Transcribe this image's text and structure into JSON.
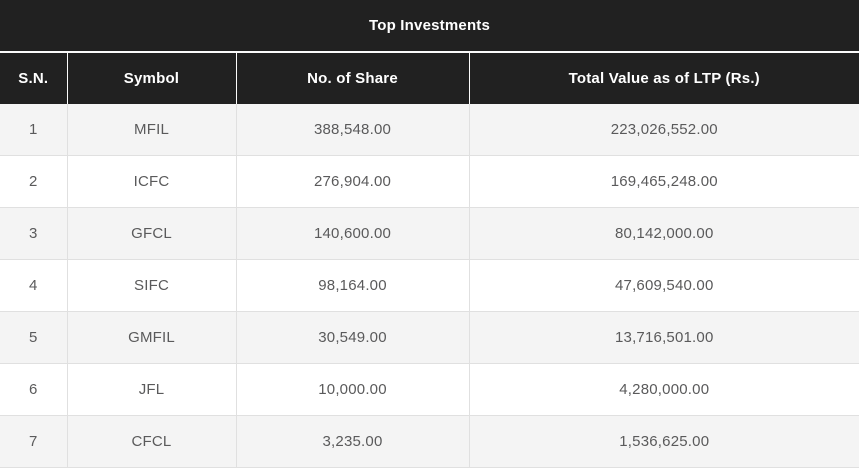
{
  "table": {
    "title": "Top Investments",
    "columns": [
      {
        "key": "sn",
        "label": "S.N."
      },
      {
        "key": "symbol",
        "label": "Symbol"
      },
      {
        "key": "shares",
        "label": "No. of Share"
      },
      {
        "key": "total",
        "label": "Total Value as of LTP (Rs.)"
      }
    ],
    "rows": [
      {
        "sn": "1",
        "symbol": "MFIL",
        "shares": "388,548.00",
        "total": "223,026,552.00"
      },
      {
        "sn": "2",
        "symbol": "ICFC",
        "shares": "276,904.00",
        "total": "169,465,248.00"
      },
      {
        "sn": "3",
        "symbol": "GFCL",
        "shares": "140,600.00",
        "total": "80,142,000.00"
      },
      {
        "sn": "4",
        "symbol": "SIFC",
        "shares": "98,164.00",
        "total": "47,609,540.00"
      },
      {
        "sn": "5",
        "symbol": "GMFIL",
        "shares": "30,549.00",
        "total": "13,716,501.00"
      },
      {
        "sn": "6",
        "symbol": "JFL",
        "shares": "10,000.00",
        "total": "4,280,000.00"
      },
      {
        "sn": "7",
        "symbol": "CFCL",
        "shares": "3,235.00",
        "total": "1,536,625.00"
      }
    ]
  },
  "colors": {
    "header_bg": "#212121",
    "header_text": "#ffffff",
    "row_stripe": "#f4f4f4",
    "row_plain": "#ffffff",
    "data_text": "#5a5a5b",
    "border": "#e0e0e0",
    "header_separator": "#fbfbfb"
  }
}
